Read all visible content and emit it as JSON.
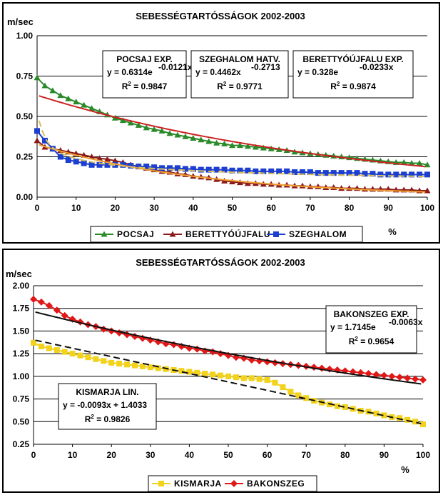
{
  "chart_data": [
    {
      "type": "scatter",
      "title": "SEBESSÉGTARTÓSSÁGOK 2002-2003",
      "ylabel": "m/sec",
      "xlabel": "%",
      "xlim": [
        0,
        100
      ],
      "ylim": [
        0,
        1
      ],
      "xticks": [
        "0",
        "10",
        "20",
        "30",
        "40",
        "50",
        "60",
        "70",
        "80",
        "90",
        "100"
      ],
      "yticks": [
        "0.00",
        "0.25",
        "0.50",
        "0.75",
        "1.00"
      ],
      "series": [
        {
          "name": "POCSAJ",
          "color": "#2a8a2a",
          "marker": "triangle",
          "x": [
            0,
            2,
            4,
            6,
            8,
            10,
            12,
            14,
            16,
            18,
            20,
            22,
            24,
            26,
            28,
            30,
            32,
            34,
            36,
            38,
            40,
            42,
            44,
            46,
            48,
            50,
            52,
            54,
            56,
            58,
            60,
            62,
            64,
            66,
            68,
            70,
            72,
            74,
            76,
            78,
            80,
            82,
            84,
            86,
            88,
            90,
            92,
            94,
            96,
            98,
            100
          ],
          "values": [
            0.74,
            0.69,
            0.66,
            0.63,
            0.61,
            0.59,
            0.57,
            0.55,
            0.53,
            0.51,
            0.49,
            0.475,
            0.46,
            0.445,
            0.43,
            0.42,
            0.41,
            0.395,
            0.385,
            0.375,
            0.365,
            0.355,
            0.345,
            0.335,
            0.33,
            0.32,
            0.32,
            0.315,
            0.31,
            0.305,
            0.3,
            0.295,
            0.29,
            0.28,
            0.275,
            0.27,
            0.265,
            0.26,
            0.255,
            0.25,
            0.245,
            0.24,
            0.235,
            0.23,
            0.225,
            0.22,
            0.215,
            0.215,
            0.21,
            0.21,
            0.2
          ],
          "trend": {
            "label": "POCSAJ EXP.",
            "equation": "y = 0.6314e",
            "exponent": "-0.0121x",
            "r2": "0.9847",
            "a": 0.6314,
            "b": -0.0121,
            "kind": "exp",
            "color": "#cc2222"
          }
        },
        {
          "name": "BERETTYÓÚJFALU",
          "color": "#8b1a1a",
          "marker": "triangle",
          "x": [
            0,
            2,
            4,
            6,
            8,
            10,
            12,
            14,
            16,
            18,
            20,
            22,
            24,
            26,
            28,
            30,
            32,
            34,
            36,
            38,
            40,
            42,
            44,
            46,
            48,
            50,
            52,
            54,
            56,
            58,
            60,
            62,
            64,
            66,
            68,
            70,
            72,
            74,
            76,
            78,
            80,
            82,
            84,
            86,
            88,
            90,
            92,
            94,
            96,
            98,
            100
          ],
          "values": [
            0.35,
            0.31,
            0.3,
            0.29,
            0.28,
            0.27,
            0.26,
            0.25,
            0.24,
            0.235,
            0.225,
            0.215,
            0.2,
            0.19,
            0.18,
            0.17,
            0.16,
            0.155,
            0.145,
            0.14,
            0.13,
            0.125,
            0.12,
            0.11,
            0.1,
            0.095,
            0.09,
            0.085,
            0.085,
            0.08,
            0.08,
            0.075,
            0.075,
            0.07,
            0.07,
            0.065,
            0.065,
            0.06,
            0.06,
            0.055,
            0.055,
            0.055,
            0.05,
            0.05,
            0.05,
            0.05,
            0.045,
            0.045,
            0.045,
            0.04,
            0.04
          ],
          "trend": {
            "label": "BERETTYÓÚJFALU EXP.",
            "equation": "y = 0.328e",
            "exponent": "-0.0233x",
            "r2": "0.9874",
            "a": 0.328,
            "b": -0.0233,
            "kind": "exp",
            "color": "#f0a030"
          }
        },
        {
          "name": "SZEGHALOM",
          "color": "#1c3fd0",
          "marker": "square",
          "x": [
            0,
            2,
            4,
            6,
            8,
            10,
            12,
            14,
            16,
            18,
            20,
            22,
            24,
            26,
            28,
            30,
            32,
            34,
            36,
            38,
            40,
            42,
            44,
            46,
            48,
            50,
            52,
            54,
            56,
            58,
            60,
            62,
            64,
            66,
            68,
            70,
            72,
            74,
            76,
            78,
            80,
            82,
            84,
            86,
            88,
            90,
            92,
            94,
            96,
            98,
            100
          ],
          "values": [
            0.41,
            0.35,
            0.3,
            0.25,
            0.23,
            0.22,
            0.21,
            0.2,
            0.2,
            0.2,
            0.2,
            0.2,
            0.195,
            0.19,
            0.19,
            0.185,
            0.18,
            0.18,
            0.18,
            0.175,
            0.175,
            0.17,
            0.17,
            0.17,
            0.17,
            0.165,
            0.165,
            0.165,
            0.16,
            0.16,
            0.16,
            0.16,
            0.16,
            0.155,
            0.155,
            0.155,
            0.15,
            0.15,
            0.15,
            0.15,
            0.15,
            0.15,
            0.145,
            0.145,
            0.14,
            0.14,
            0.14,
            0.14,
            0.14,
            0.14,
            0.14
          ],
          "trend": {
            "label": "SZEGHALOM HATV.",
            "equation": "y = 0.4462x",
            "exponent": "-0.2713",
            "r2": "0.9771",
            "a": 0.4462,
            "b": -0.2713,
            "kind": "power",
            "color": "#d8c060"
          }
        }
      ],
      "legend": [
        "POCSAJ",
        "BERETTYÓÚJFALU",
        "SZEGHALOM"
      ],
      "legend_position": "bottom"
    },
    {
      "type": "scatter",
      "title": "SEBESSÉGTARTÓSSÁGOK 2002-2003",
      "ylabel": "m/sec",
      "xlabel": "%",
      "xlim": [
        0,
        100
      ],
      "ylim": [
        0.25,
        2
      ],
      "xticks": [
        "0",
        "10",
        "20",
        "30",
        "40",
        "50",
        "60",
        "70",
        "80",
        "90",
        "100"
      ],
      "yticks": [
        "0.25",
        "0.50",
        "0.75",
        "1.00",
        "1.25",
        "1.50",
        "1.75",
        "2.00"
      ],
      "series": [
        {
          "name": "KISMARJA",
          "color": "#f2d21a",
          "marker": "square",
          "x": [
            0,
            2,
            4,
            6,
            8,
            10,
            12,
            14,
            16,
            18,
            20,
            22,
            24,
            26,
            28,
            30,
            32,
            34,
            36,
            38,
            40,
            42,
            44,
            46,
            48,
            50,
            52,
            54,
            56,
            58,
            60,
            62,
            64,
            66,
            68,
            70,
            72,
            74,
            76,
            78,
            80,
            82,
            84,
            86,
            88,
            90,
            92,
            94,
            96,
            98,
            100
          ],
          "values": [
            1.37,
            1.33,
            1.31,
            1.29,
            1.27,
            1.25,
            1.23,
            1.21,
            1.19,
            1.17,
            1.15,
            1.14,
            1.13,
            1.12,
            1.11,
            1.1,
            1.09,
            1.08,
            1.07,
            1.06,
            1.05,
            1.04,
            1.03,
            1.02,
            1.01,
            1.0,
            0.99,
            0.98,
            0.98,
            0.97,
            0.96,
            0.93,
            0.88,
            0.83,
            0.79,
            0.76,
            0.73,
            0.71,
            0.69,
            0.67,
            0.66,
            0.64,
            0.62,
            0.61,
            0.59,
            0.57,
            0.55,
            0.54,
            0.52,
            0.5,
            0.47
          ],
          "trend": {
            "label": "KISMARJA LIN.",
            "equation": "y = -0.0093x + 1.4033",
            "exponent": "",
            "r2": "0.9826",
            "a": 1.4033,
            "b": -0.0093,
            "kind": "linear",
            "color": "#111111"
          }
        },
        {
          "name": "BAKONSZEG",
          "color": "#e01818",
          "marker": "diamond",
          "x": [
            0,
            2,
            4,
            6,
            8,
            10,
            12,
            14,
            16,
            18,
            20,
            22,
            24,
            26,
            28,
            30,
            32,
            34,
            36,
            38,
            40,
            42,
            44,
            46,
            48,
            50,
            52,
            54,
            56,
            58,
            60,
            62,
            64,
            66,
            68,
            70,
            72,
            74,
            76,
            78,
            80,
            82,
            84,
            86,
            88,
            90,
            92,
            94,
            96,
            98,
            100
          ],
          "values": [
            1.85,
            1.82,
            1.78,
            1.73,
            1.67,
            1.63,
            1.6,
            1.57,
            1.55,
            1.52,
            1.5,
            1.48,
            1.46,
            1.44,
            1.42,
            1.4,
            1.38,
            1.36,
            1.35,
            1.33,
            1.31,
            1.3,
            1.28,
            1.27,
            1.25,
            1.23,
            1.21,
            1.2,
            1.18,
            1.17,
            1.16,
            1.15,
            1.14,
            1.13,
            1.12,
            1.11,
            1.1,
            1.09,
            1.08,
            1.07,
            1.06,
            1.05,
            1.04,
            1.03,
            1.02,
            1.01,
            1.0,
            0.99,
            0.98,
            0.97,
            0.96
          ],
          "trend": {
            "label": "BAKONSZEG EXP.",
            "equation": "y = 1.7145e",
            "exponent": "-0.0063x",
            "r2": "0.9654",
            "a": 1.7145,
            "b": -0.0063,
            "kind": "exp",
            "color": "#111111"
          }
        }
      ],
      "legend": [
        "KISMARJA",
        "BAKONSZEG"
      ],
      "legend_position": "bottom"
    }
  ]
}
